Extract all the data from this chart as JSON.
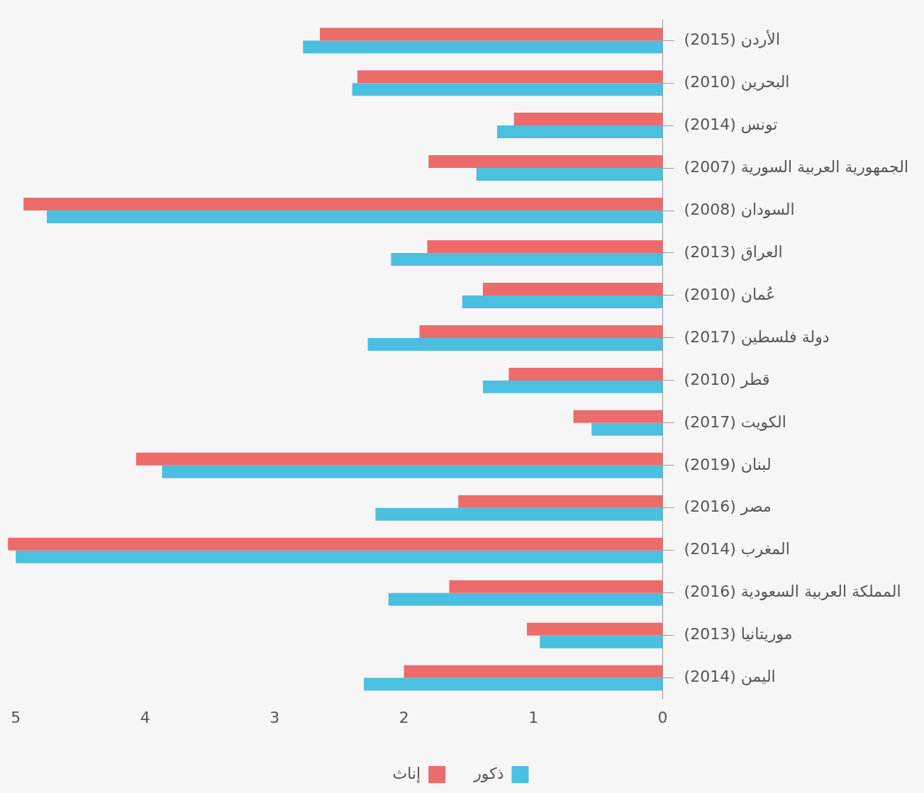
{
  "chart_data": {
    "type": "bar",
    "orientation": "horizontal",
    "categories": [
      "الأردن (2015)",
      "البحرين (2010)",
      "تونس (2014)",
      "الجمهورية العربية السورية (2007)",
      "السودان (2008)",
      "العراق (2013)",
      "عُمان (2010)",
      "دولة فلسطين (2017)",
      "قطر (2010)",
      "الكويت (2017)",
      "لبنان (2019)",
      "مصر (2016)",
      "المغرب (2014)",
      "المملكة العربية السعودية (2016)",
      "موريتانيا (2013)",
      "اليمن (2014)"
    ],
    "series": [
      {
        "name": "إناث",
        "color": "#ec6b6b",
        "values": [
          2.65,
          2.36,
          1.15,
          1.81,
          4.94,
          1.82,
          1.39,
          1.88,
          1.19,
          0.69,
          4.07,
          1.58,
          5.06,
          1.65,
          1.05,
          2.0
        ]
      },
      {
        "name": "ذكور",
        "color": "#4bbfe0",
        "values": [
          2.78,
          2.4,
          1.28,
          1.44,
          4.76,
          2.1,
          1.55,
          2.28,
          1.39,
          0.55,
          3.87,
          2.22,
          5.0,
          2.12,
          0.95,
          2.31
        ]
      }
    ],
    "xlim": [
      5.1,
      0
    ],
    "xticks": [
      5,
      4,
      3,
      2,
      1,
      0
    ],
    "grid": false,
    "legend": "bottom"
  }
}
